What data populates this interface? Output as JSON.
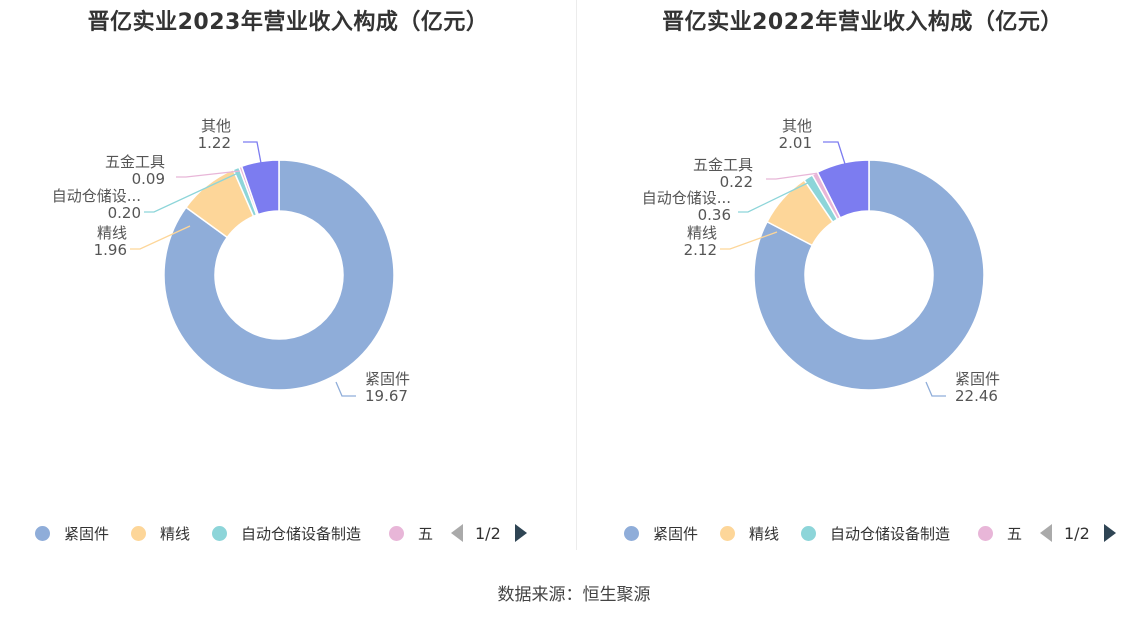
{
  "chart_data": [
    {
      "type": "pie",
      "variant": "donut",
      "title": "晋亿实业2023年营业收入构成（亿元）",
      "categories": [
        "紧固件",
        "精线",
        "自动仓储设备制造",
        "五金工具",
        "其他"
      ],
      "label_names": [
        "紧固件",
        "精线",
        "自动仓储设...",
        "五金工具",
        "其他"
      ],
      "values": [
        19.67,
        1.96,
        0.2,
        0.09,
        1.22
      ],
      "value_labels": [
        "19.67",
        "1.96",
        "0.20",
        "0.09",
        "1.22"
      ],
      "colors": [
        "#8fadd9",
        "#fdd699",
        "#8dd5d9",
        "#e8b6d8",
        "#7c7cf0"
      ],
      "legend": {
        "placement": "bottom",
        "visible_items": [
          "紧固件",
          "精线",
          "自动仓储设备制造",
          "五"
        ],
        "page": "1/2"
      }
    },
    {
      "type": "pie",
      "variant": "donut",
      "title": "晋亿实业2022年营业收入构成（亿元）",
      "categories": [
        "紧固件",
        "精线",
        "自动仓储设备制造",
        "五金工具",
        "其他"
      ],
      "label_names": [
        "紧固件",
        "精线",
        "自动仓储设...",
        "五金工具",
        "其他"
      ],
      "values": [
        22.46,
        2.12,
        0.36,
        0.22,
        2.01
      ],
      "value_labels": [
        "22.46",
        "2.12",
        "0.36",
        "0.22",
        "2.01"
      ],
      "colors": [
        "#8fadd9",
        "#fdd699",
        "#8dd5d9",
        "#e8b6d8",
        "#7c7cf0"
      ],
      "legend": {
        "placement": "bottom",
        "visible_items": [
          "紧固件",
          "精线",
          "自动仓储设备制造",
          "五"
        ],
        "page": "1/2"
      }
    }
  ],
  "source": "数据来源：恒生聚源"
}
